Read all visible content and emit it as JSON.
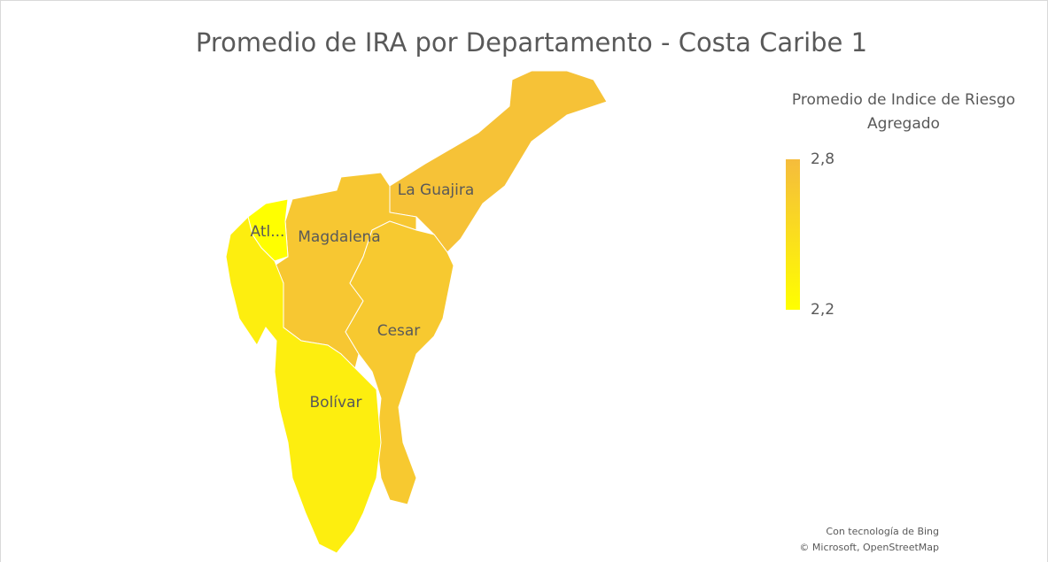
{
  "chart_data": {
    "type": "map",
    "title": "Promedio de IRA por Departamento - Costa Caribe 1",
    "legend_title": "Promedio de Indice de Riesgo Agregado",
    "scale": [
      {
        "value": 2.8,
        "label": "2,8"
      },
      {
        "value": 2.2,
        "label": "2,2"
      }
    ],
    "colors": [
      "#f5bc3c",
      "#ffff00"
    ],
    "regions": [
      {
        "name": "La Guajira",
        "value": 2.75
      },
      {
        "name": "Magdalena",
        "value": 2.7
      },
      {
        "name": "Atl...",
        "value": 2.2
      },
      {
        "name": "Cesar",
        "value": 2.68
      },
      {
        "name": "Bolívar",
        "value": 2.35
      }
    ],
    "credits": [
      "Con tecnología de Bing",
      "© Microsoft, OpenStreetMap"
    ]
  }
}
